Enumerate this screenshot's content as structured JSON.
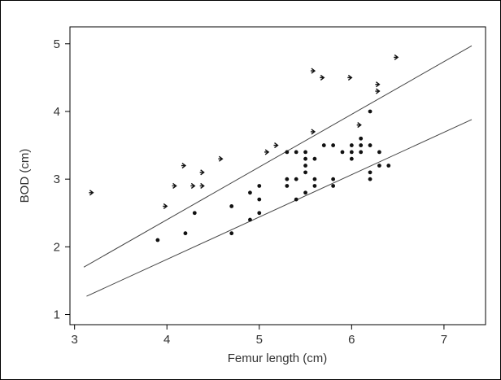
{
  "chart_data": {
    "type": "scatter",
    "title": "",
    "xlabel": "Femur length (cm)",
    "ylabel": "BOD (cm)",
    "xlim": [
      2.95,
      7.45
    ],
    "ylim": [
      0.85,
      5.25
    ],
    "xticks": [
      3,
      4,
      5,
      6,
      7
    ],
    "yticks": [
      1,
      2,
      3,
      4,
      5
    ],
    "grid": false,
    "series": [
      {
        "marker": "arrow",
        "points": [
          [
            3.2,
            2.8
          ],
          [
            4.0,
            2.6
          ],
          [
            4.1,
            2.9
          ],
          [
            4.2,
            3.2
          ],
          [
            4.3,
            2.9
          ],
          [
            4.4,
            3.1
          ],
          [
            4.4,
            2.9
          ],
          [
            4.6,
            3.3
          ],
          [
            5.1,
            3.4
          ],
          [
            5.2,
            3.5
          ],
          [
            5.6,
            3.7
          ],
          [
            5.6,
            4.6
          ],
          [
            5.7,
            4.5
          ],
          [
            6.0,
            4.5
          ],
          [
            6.3,
            4.4
          ],
          [
            6.3,
            4.3
          ],
          [
            6.5,
            4.8
          ],
          [
            6.1,
            3.8
          ]
        ]
      },
      {
        "marker": "dot",
        "points": [
          [
            3.9,
            2.1
          ],
          [
            4.2,
            2.2
          ],
          [
            4.3,
            2.5
          ],
          [
            4.7,
            2.6
          ],
          [
            4.7,
            2.2
          ],
          [
            4.9,
            2.8
          ],
          [
            4.9,
            2.4
          ],
          [
            5.0,
            2.9
          ],
          [
            5.0,
            2.7
          ],
          [
            5.0,
            2.5
          ],
          [
            5.3,
            3.4
          ],
          [
            5.3,
            3.0
          ],
          [
            5.3,
            2.9
          ],
          [
            5.4,
            3.4
          ],
          [
            5.4,
            3.0
          ],
          [
            5.4,
            2.7
          ],
          [
            5.5,
            3.4
          ],
          [
            5.5,
            3.3
          ],
          [
            5.5,
            3.2
          ],
          [
            5.5,
            3.1
          ],
          [
            5.5,
            2.8
          ],
          [
            5.6,
            3.3
          ],
          [
            5.6,
            3.0
          ],
          [
            5.6,
            2.9
          ],
          [
            5.7,
            3.5
          ],
          [
            5.8,
            3.5
          ],
          [
            5.8,
            3.0
          ],
          [
            5.8,
            2.9
          ],
          [
            5.9,
            3.4
          ],
          [
            6.0,
            3.5
          ],
          [
            6.0,
            3.4
          ],
          [
            6.0,
            3.3
          ],
          [
            6.1,
            3.6
          ],
          [
            6.1,
            3.5
          ],
          [
            6.1,
            3.4
          ],
          [
            6.2,
            4.0
          ],
          [
            6.2,
            3.5
          ],
          [
            6.2,
            3.1
          ],
          [
            6.2,
            3.0
          ],
          [
            6.3,
            3.4
          ],
          [
            6.3,
            3.2
          ],
          [
            6.4,
            3.2
          ]
        ]
      }
    ],
    "lines": [
      {
        "x": [
          3.1,
          7.3
        ],
        "y": [
          1.7,
          4.97
        ]
      },
      {
        "x": [
          3.13,
          7.3
        ],
        "y": [
          1.27,
          3.88
        ]
      }
    ]
  }
}
